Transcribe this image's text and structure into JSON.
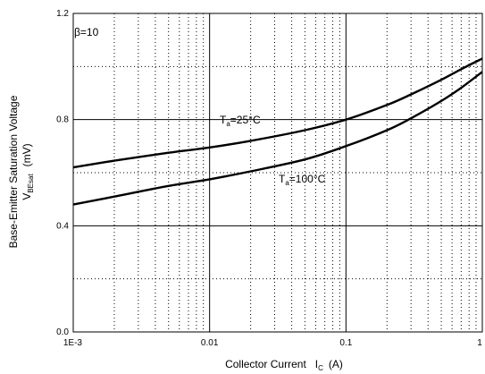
{
  "chart_data": {
    "type": "line",
    "xscale": "log",
    "xlim": [
      0.001,
      1
    ],
    "ylim": [
      0.0,
      1.2
    ],
    "x_ticks": [
      0.001,
      0.01,
      0.1,
      1
    ],
    "x_tick_labels": [
      "1E-3",
      "0.01",
      "0.1",
      "1"
    ],
    "y_ticks": [
      0.0,
      0.4,
      0.8,
      1.2
    ],
    "y_tick_labels": [
      "0.0",
      "0.4",
      "0.8",
      "1.2"
    ],
    "y_minor_ticks": [
      0.2,
      0.6,
      1.0
    ],
    "grid": true,
    "xlabel": {
      "main": "Collector Current",
      "symbol": "I",
      "sub": "C",
      "unit": "(A)"
    },
    "ylabel": {
      "line1": "Base-Emitter Saturation Voltage",
      "symbol": "V",
      "sub": "BEsat",
      "unit": "(mV)"
    },
    "annotation": "β=10",
    "series": [
      {
        "label_symbol": "T",
        "label_sub": "a",
        "label_value": "=25°C",
        "x": [
          0.001,
          0.002,
          0.005,
          0.01,
          0.02,
          0.05,
          0.1,
          0.2,
          0.3,
          0.5,
          0.7,
          1.0
        ],
        "values": [
          0.62,
          0.645,
          0.675,
          0.695,
          0.72,
          0.76,
          0.8,
          0.855,
          0.895,
          0.95,
          0.99,
          1.03
        ]
      },
      {
        "label_symbol": "T",
        "label_sub": "a",
        "label_value": "=100°C",
        "x": [
          0.001,
          0.002,
          0.005,
          0.01,
          0.02,
          0.05,
          0.1,
          0.2,
          0.3,
          0.5,
          0.7,
          1.0
        ],
        "values": [
          0.48,
          0.51,
          0.55,
          0.575,
          0.605,
          0.65,
          0.7,
          0.76,
          0.805,
          0.87,
          0.92,
          0.98
        ]
      }
    ]
  }
}
